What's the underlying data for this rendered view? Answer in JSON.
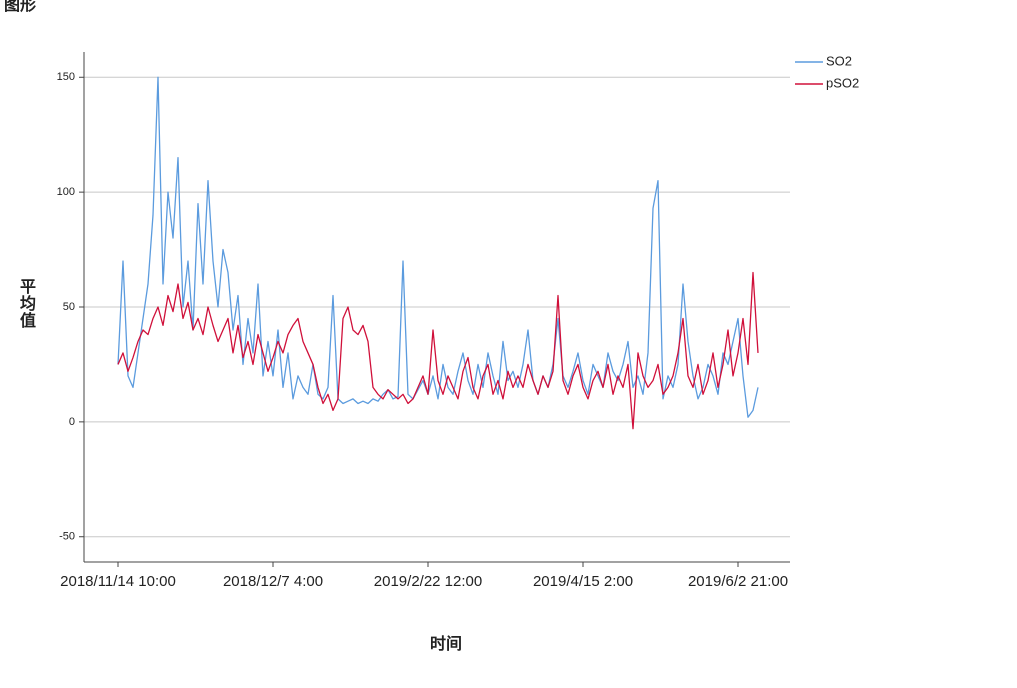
{
  "title": "图形",
  "chart_data": {
    "type": "line",
    "xlabel": "时间",
    "ylabel": "平均值",
    "categories": [
      "2018/11/14 10:00",
      null,
      null,
      null,
      null,
      null,
      null,
      null,
      null,
      null,
      null,
      null,
      null,
      null,
      null,
      null,
      null,
      null,
      null,
      null,
      null,
      null,
      null,
      null,
      null,
      null,
      null,
      null,
      null,
      null,
      null,
      "2018/12/7 4:00",
      null,
      null,
      null,
      null,
      null,
      null,
      null,
      null,
      null,
      null,
      null,
      null,
      null,
      null,
      null,
      null,
      null,
      null,
      null,
      null,
      null,
      null,
      null,
      null,
      null,
      null,
      null,
      null,
      null,
      null,
      "2019/2/22 12:00",
      null,
      null,
      null,
      null,
      null,
      null,
      null,
      null,
      null,
      null,
      null,
      null,
      null,
      null,
      null,
      null,
      null,
      null,
      null,
      null,
      null,
      null,
      null,
      null,
      null,
      null,
      null,
      null,
      null,
      null,
      "2019/4/15 2:00",
      null,
      null,
      null,
      null,
      null,
      null,
      null,
      null,
      null,
      null,
      null,
      null,
      null,
      null,
      null,
      null,
      null,
      null,
      null,
      null,
      null,
      null,
      null,
      null,
      null,
      null,
      null,
      null,
      null,
      null,
      "2019/6/2 21:00",
      null,
      null,
      null,
      null
    ],
    "series": [
      {
        "name": "SO2",
        "color": "#5b9bde",
        "values": [
          25,
          70,
          20,
          15,
          30,
          45,
          60,
          90,
          150,
          60,
          100,
          80,
          115,
          50,
          70,
          40,
          95,
          60,
          105,
          70,
          50,
          75,
          65,
          40,
          55,
          25,
          45,
          30,
          60,
          20,
          35,
          20,
          40,
          15,
          30,
          10,
          20,
          15,
          12,
          25,
          12,
          10,
          15,
          55,
          10,
          8,
          9,
          10,
          8,
          9,
          8,
          10,
          9,
          12,
          14,
          10,
          11,
          70,
          12,
          10,
          14,
          18,
          12,
          20,
          10,
          25,
          15,
          12,
          22,
          30,
          18,
          12,
          25,
          15,
          30,
          20,
          12,
          35,
          18,
          22,
          15,
          25,
          40,
          18,
          12,
          20,
          15,
          25,
          45,
          20,
          15,
          22,
          30,
          18,
          12,
          25,
          20,
          15,
          30,
          22,
          18,
          25,
          35,
          15,
          20,
          12,
          30,
          93,
          105,
          10,
          20,
          15,
          25,
          60,
          35,
          20,
          10,
          15,
          25,
          20,
          12,
          30,
          25,
          35,
          45,
          20,
          2,
          5,
          15
        ]
      },
      {
        "name": "pSO2",
        "color": "#d0103a",
        "values": [
          25,
          30,
          22,
          28,
          35,
          40,
          38,
          45,
          50,
          42,
          55,
          48,
          60,
          45,
          52,
          40,
          45,
          38,
          50,
          42,
          35,
          40,
          45,
          30,
          42,
          28,
          35,
          25,
          38,
          30,
          22,
          28,
          35,
          30,
          38,
          42,
          45,
          35,
          30,
          25,
          15,
          8,
          12,
          5,
          10,
          45,
          50,
          40,
          38,
          42,
          35,
          15,
          12,
          10,
          14,
          12,
          10,
          12,
          8,
          10,
          15,
          20,
          12,
          40,
          18,
          12,
          20,
          15,
          10,
          22,
          28,
          15,
          10,
          20,
          25,
          12,
          18,
          10,
          22,
          15,
          20,
          15,
          25,
          18,
          12,
          20,
          15,
          22,
          55,
          18,
          12,
          20,
          25,
          15,
          10,
          18,
          22,
          15,
          25,
          12,
          20,
          15,
          25,
          -3,
          30,
          20,
          15,
          18,
          25,
          12,
          15,
          20,
          30,
          45,
          20,
          15,
          25,
          12,
          18,
          30,
          15,
          25,
          40,
          20,
          30,
          45,
          25,
          65,
          30
        ]
      }
    ],
    "ylim": [
      -61,
      161
    ],
    "yticks": [
      -50,
      0,
      50,
      100,
      150
    ],
    "grid": true,
    "legend": "top-right"
  }
}
